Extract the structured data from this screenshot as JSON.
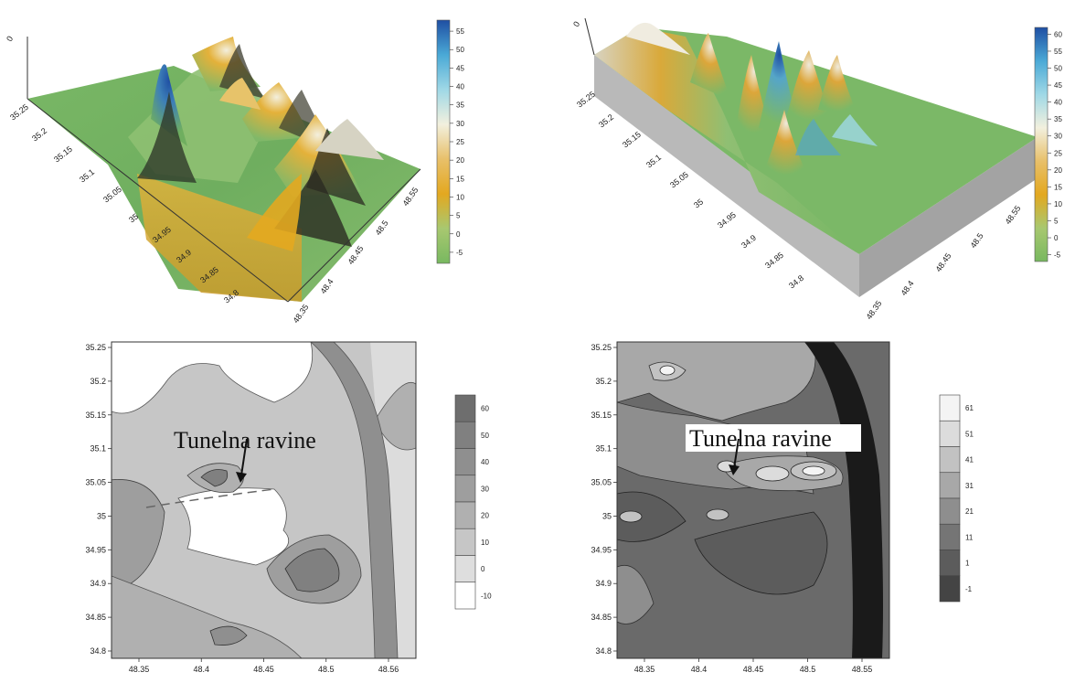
{
  "chart_data": [
    {
      "type": "surface3d",
      "panel": "top-left",
      "z_axis_tick": "0",
      "y_ticks": [
        "35.25",
        "35.2",
        "35.15",
        "35.1",
        "35.05",
        "35",
        "34.95",
        "34.9",
        "34.85",
        "34.8"
      ],
      "x_ticks": [
        "48.35",
        "48.4",
        "48.45",
        "48.5",
        "48.55"
      ],
      "colorbar": {
        "ticks": [
          55,
          50,
          45,
          40,
          35,
          30,
          25,
          20,
          15,
          10,
          5,
          0,
          -5
        ],
        "range": [
          -8,
          58
        ],
        "colors": [
          "#1f4fa3",
          "#4aa9d6",
          "#9fd8e6",
          "#f2f0de",
          "#e8c06a",
          "#e3a820",
          "#a8c870",
          "#78b860"
        ]
      },
      "peaks_note_hidden": true
    },
    {
      "type": "surface3d",
      "panel": "top-right",
      "z_axis_tick": "0",
      "y_ticks": [
        "35.25",
        "35.2",
        "35.15",
        "35.1",
        "35.05",
        "35",
        "34.95",
        "34.9",
        "34.85",
        "34.8"
      ],
      "x_ticks": [
        "48.35",
        "48.4",
        "48.45",
        "48.5",
        "48.55"
      ],
      "colorbar": {
        "ticks": [
          60,
          55,
          50,
          45,
          40,
          35,
          30,
          25,
          20,
          15,
          10,
          5,
          0,
          -5
        ],
        "range": [
          -7,
          62
        ],
        "colors": [
          "#1f4fa3",
          "#4aa9d6",
          "#9fd8e6",
          "#f2f0de",
          "#e8c06a",
          "#e3a820",
          "#a8c870",
          "#78b860"
        ]
      }
    },
    {
      "type": "contour",
      "panel": "bottom-left",
      "x_ticks": [
        "48.35",
        "48.4",
        "48.45",
        "48.5",
        "48.56"
      ],
      "y_ticks": [
        "35.25",
        "35.2",
        "35.15",
        "35.1",
        "35.05",
        "35",
        "34.95",
        "34.9",
        "34.85",
        "34.8"
      ],
      "annotation": "Tunelna ravine",
      "colorbar": {
        "ticks": [
          "60",
          "50",
          "40",
          "30",
          "20",
          "10",
          "0",
          "-10"
        ],
        "shades": [
          "#6e6e6e",
          "#808080",
          "#8f8f8f",
          "#9e9e9e",
          "#b0b0b0",
          "#c6c6c6",
          "#dedede",
          "#ffffff"
        ]
      }
    },
    {
      "type": "contour",
      "panel": "bottom-right",
      "x_ticks": [
        "48.35",
        "48.4",
        "48.45",
        "48.5",
        "48.55"
      ],
      "y_ticks": [
        "35.25",
        "35.2",
        "35.15",
        "35.1",
        "35.05",
        "35",
        "34.95",
        "34.9",
        "34.85",
        "34.8"
      ],
      "annotation": "Tunelna ravine",
      "colorbar": {
        "ticks": [
          "61",
          "51",
          "41",
          "31",
          "21",
          "11",
          "1",
          "-1"
        ],
        "shades": [
          "#f4f4f4",
          "#dcdcdc",
          "#c2c2c2",
          "#a8a8a8",
          "#8e8e8e",
          "#757575",
          "#5c5c5c",
          "#444444"
        ]
      }
    }
  ]
}
